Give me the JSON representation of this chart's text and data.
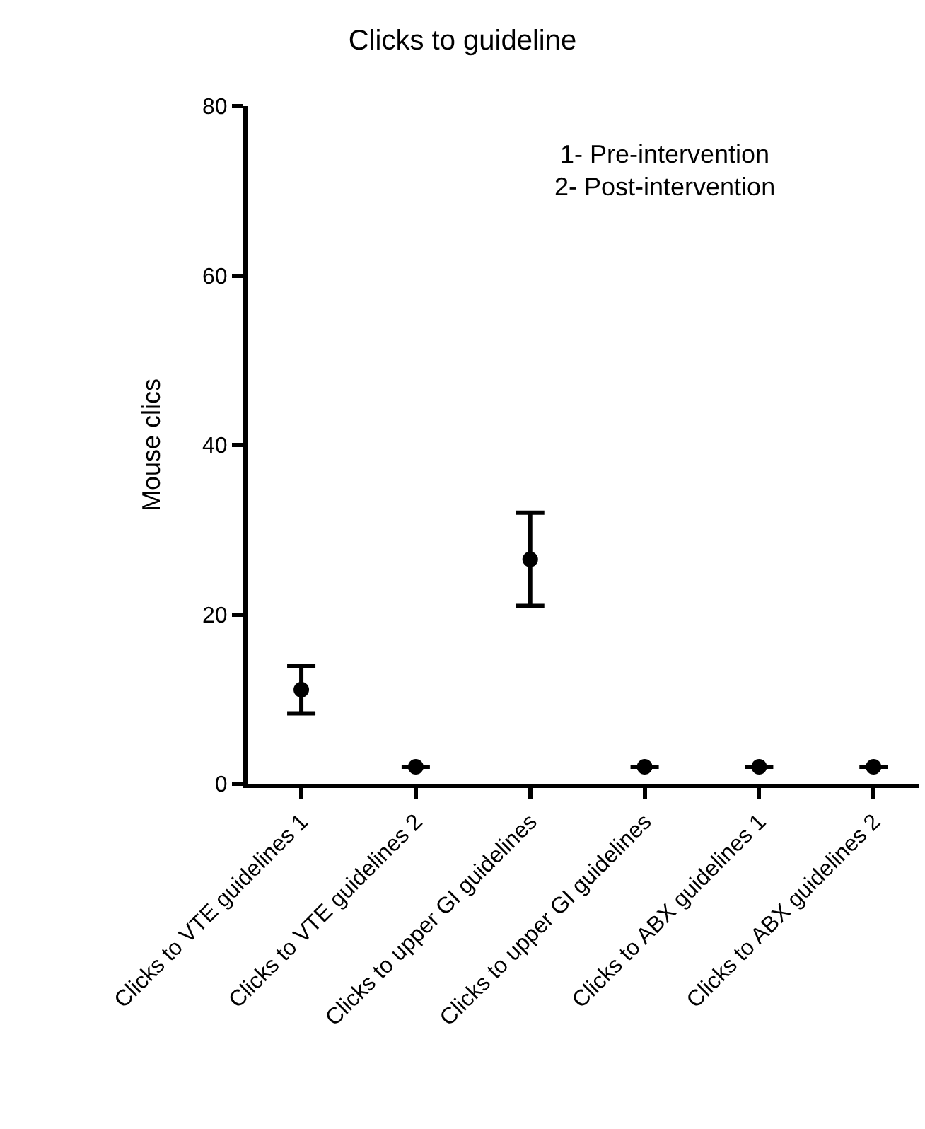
{
  "chart_data": {
    "type": "scatter",
    "title": "Clicks to guideline",
    "ylabel": "Mouse clics",
    "categories": [
      "Clicks to VTE guidelines 1",
      "Clicks to VTE guidelines 2",
      "Clicks to upper GI guidelines",
      "Clicks to upper GI guidelines",
      "Clicks to ABX guidelines 1",
      "Clicks to ABX guidelines 2"
    ],
    "values": [
      11.1,
      2,
      26.5,
      2,
      2,
      2
    ],
    "errors": [
      [
        8.3,
        13.9
      ],
      null,
      [
        21,
        32
      ],
      null,
      null,
      null
    ],
    "color": "#000000",
    "marker": "circle",
    "ylim": [
      0,
      80
    ],
    "yticks": [
      0,
      20,
      40,
      60,
      80
    ],
    "annotations": [
      "1- Pre-intervention",
      "2- Post-intervention"
    ]
  }
}
